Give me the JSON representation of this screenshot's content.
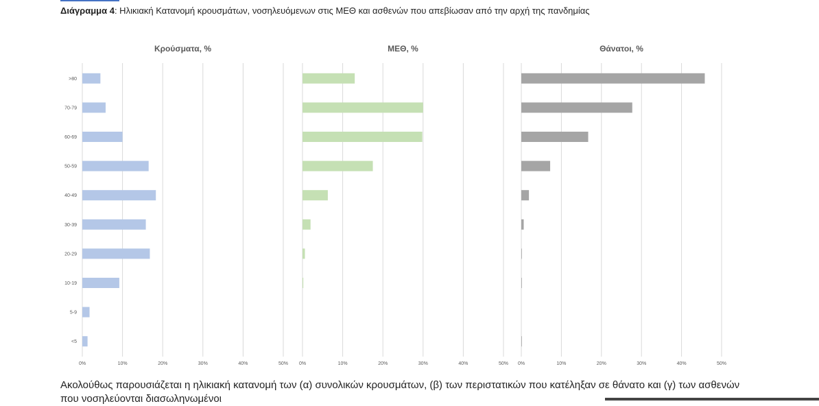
{
  "caption": {
    "bold": "Διάγραμμα 4",
    "rest": ": Ηλικιακή Κατανομή κρουσμάτων, νοσηλευόμενων στις ΜΕΘ και ασθενών που απεβίωσαν από την αρχή της πανδημίας"
  },
  "paragraph": "Ακολούθως παρουσιάζεται η ηλικιακή κατανομή των (α) συνολικών κρουσμάτων, (β) των περιστατικών που κατέληξαν σε θάνατο και (γ) των ασθενών που νοσηλεύονται διασωληνωμένοι",
  "chart_data": [
    {
      "type": "bar",
      "orientation": "horizontal",
      "title": "Κρούσματα, %",
      "color": "#b4c7e7",
      "categories": [
        ">80",
        "70-79",
        "60-69",
        "50-59",
        "40-49",
        "30-39",
        "20-29",
        "10-19",
        "5-9",
        "<5"
      ],
      "values": [
        4.5,
        5.8,
        10.0,
        16.5,
        18.3,
        15.8,
        16.8,
        9.2,
        1.8,
        1.3
      ],
      "xlim": [
        0,
        50
      ],
      "xticks": [
        "0%",
        "10%",
        "20%",
        "30%",
        "40%",
        "50%"
      ],
      "grid": true
    },
    {
      "type": "bar",
      "orientation": "horizontal",
      "title": "ΜΕΘ, %",
      "color": "#c5e0b4",
      "categories": [
        ">80",
        "70-79",
        "60-69",
        "50-59",
        "40-49",
        "30-39",
        "20-29",
        "10-19",
        "5-9",
        "<5"
      ],
      "values": [
        13.0,
        30.0,
        29.8,
        17.5,
        6.3,
        2.0,
        0.6,
        0.2,
        0.0,
        0.0
      ],
      "xlim": [
        0,
        50
      ],
      "xticks": [
        "0%",
        "10%",
        "20%",
        "30%",
        "40%",
        "50%"
      ],
      "grid": true
    },
    {
      "type": "bar",
      "orientation": "horizontal",
      "title": "Θάνατοι, %",
      "color": "#a5a5a5",
      "categories": [
        ">80",
        "70-79",
        "60-69",
        "50-59",
        "40-49",
        "30-39",
        "20-29",
        "10-19",
        "5-9",
        "<5"
      ],
      "values": [
        45.8,
        27.7,
        16.7,
        7.2,
        1.9,
        0.6,
        0.1,
        0.1,
        0.0,
        0.1
      ],
      "xlim": [
        0,
        50
      ],
      "xticks": [
        "0%",
        "10%",
        "20%",
        "30%",
        "40%",
        "50%"
      ],
      "grid": true
    }
  ]
}
